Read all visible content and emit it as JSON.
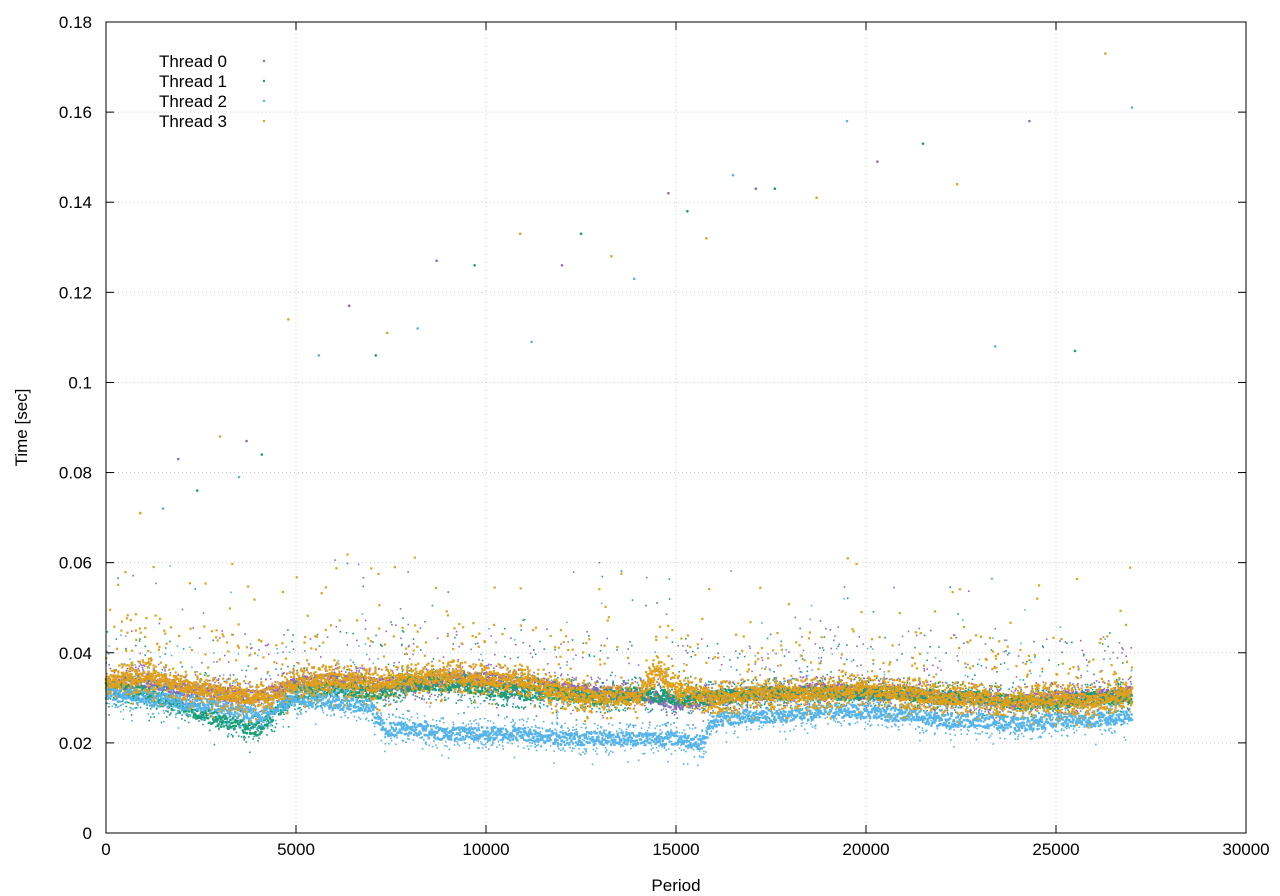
{
  "chart_data": {
    "type": "scatter",
    "title": "",
    "xlabel": "Period",
    "ylabel": "Time [sec]",
    "xlim": [
      0,
      30000
    ],
    "ylim": [
      0,
      0.18
    ],
    "x_ticks": [
      0,
      5000,
      10000,
      15000,
      20000,
      25000,
      30000
    ],
    "y_ticks": [
      0,
      0.02,
      0.04,
      0.06,
      0.08,
      0.1,
      0.12,
      0.14,
      0.16,
      0.18
    ],
    "x_tick_labels": [
      "0",
      "5000",
      "10000",
      "15000",
      "20000",
      "25000",
      "30000"
    ],
    "y_tick_labels": [
      "0",
      "0.02",
      "0.04",
      "0.06",
      "0.08",
      "0.1",
      "0.12",
      "0.14",
      "0.16",
      "0.18"
    ],
    "grid": true,
    "legend_position": "top-left",
    "series": [
      {
        "name": "Thread 0",
        "color": "#9467bd",
        "x": [
          0,
          1000,
          2000,
          3000,
          4000,
          5000,
          6000,
          7000,
          8000,
          9000,
          10000,
          11000,
          12000,
          13000,
          14000,
          15000,
          16000,
          17000,
          18000,
          19000,
          20000,
          21000,
          22000,
          23000,
          24000,
          25000,
          26000,
          27000
        ],
        "y": [
          0.033,
          0.034,
          0.032,
          0.031,
          0.03,
          0.033,
          0.034,
          0.033,
          0.033,
          0.034,
          0.034,
          0.033,
          0.032,
          0.031,
          0.031,
          0.029,
          0.03,
          0.031,
          0.031,
          0.032,
          0.031,
          0.031,
          0.03,
          0.03,
          0.029,
          0.03,
          0.03,
          0.031
        ]
      },
      {
        "name": "Thread 1",
        "color": "#1a9e77",
        "x": [
          0,
          1000,
          2000,
          3000,
          4000,
          5000,
          6000,
          7000,
          8000,
          9000,
          10000,
          11000,
          12000,
          13000,
          14000,
          15000,
          16000,
          17000,
          18000,
          19000,
          20000,
          21000,
          22000,
          23000,
          24000,
          25000,
          26000,
          27000
        ],
        "y": [
          0.032,
          0.031,
          0.028,
          0.025,
          0.023,
          0.031,
          0.032,
          0.031,
          0.033,
          0.033,
          0.032,
          0.031,
          0.031,
          0.03,
          0.031,
          0.03,
          0.03,
          0.031,
          0.031,
          0.031,
          0.031,
          0.031,
          0.03,
          0.03,
          0.029,
          0.029,
          0.03,
          0.03
        ]
      },
      {
        "name": "Thread 2",
        "color": "#56b4e9",
        "x": [
          0,
          1000,
          2000,
          3000,
          4000,
          5000,
          6000,
          7000,
          7300,
          8000,
          9000,
          10000,
          11000,
          12000,
          13000,
          14000,
          15000,
          15700,
          16000,
          17000,
          18000,
          19000,
          20000,
          21000,
          22000,
          23000,
          24000,
          25000,
          26000,
          27000
        ],
        "y": [
          0.031,
          0.03,
          0.029,
          0.028,
          0.026,
          0.03,
          0.029,
          0.028,
          0.023,
          0.023,
          0.022,
          0.022,
          0.022,
          0.021,
          0.021,
          0.021,
          0.021,
          0.02,
          0.025,
          0.026,
          0.026,
          0.027,
          0.027,
          0.026,
          0.025,
          0.025,
          0.024,
          0.025,
          0.025,
          0.026
        ]
      },
      {
        "name": "Thread 3",
        "color": "#e0a11b",
        "x": [
          0,
          1000,
          2000,
          3000,
          4000,
          5000,
          6000,
          7000,
          8000,
          9000,
          10000,
          11000,
          12000,
          13000,
          14000,
          14500,
          15000,
          16000,
          17000,
          18000,
          19000,
          20000,
          21000,
          22000,
          23000,
          24000,
          25000,
          26000,
          27000
        ],
        "y": [
          0.033,
          0.035,
          0.033,
          0.031,
          0.03,
          0.033,
          0.034,
          0.033,
          0.034,
          0.035,
          0.034,
          0.034,
          0.031,
          0.03,
          0.03,
          0.036,
          0.032,
          0.03,
          0.031,
          0.031,
          0.031,
          0.032,
          0.031,
          0.03,
          0.03,
          0.029,
          0.03,
          0.029,
          0.031
        ]
      }
    ],
    "outliers": {
      "x": [
        900,
        1500,
        1900,
        2400,
        3000,
        3500,
        3700,
        4100,
        4800,
        5600,
        6400,
        7100,
        7400,
        8200,
        8700,
        9700,
        10900,
        11200,
        12000,
        12500,
        13300,
        13900,
        14800,
        15300,
        15800,
        16500,
        17100,
        17600,
        18700,
        19500,
        20300,
        21500,
        22400,
        23400,
        24300,
        25500,
        26300,
        27000
      ],
      "y": [
        0.071,
        0.072,
        0.083,
        0.076,
        0.088,
        0.079,
        0.087,
        0.084,
        0.114,
        0.106,
        0.117,
        0.106,
        0.111,
        0.112,
        0.127,
        0.126,
        0.133,
        0.109,
        0.126,
        0.133,
        0.128,
        0.123,
        0.142,
        0.138,
        0.132,
        0.146,
        0.143,
        0.143,
        0.141,
        0.158,
        0.149,
        0.153,
        0.144,
        0.108,
        0.158,
        0.107,
        0.173,
        0.161
      ]
    }
  }
}
